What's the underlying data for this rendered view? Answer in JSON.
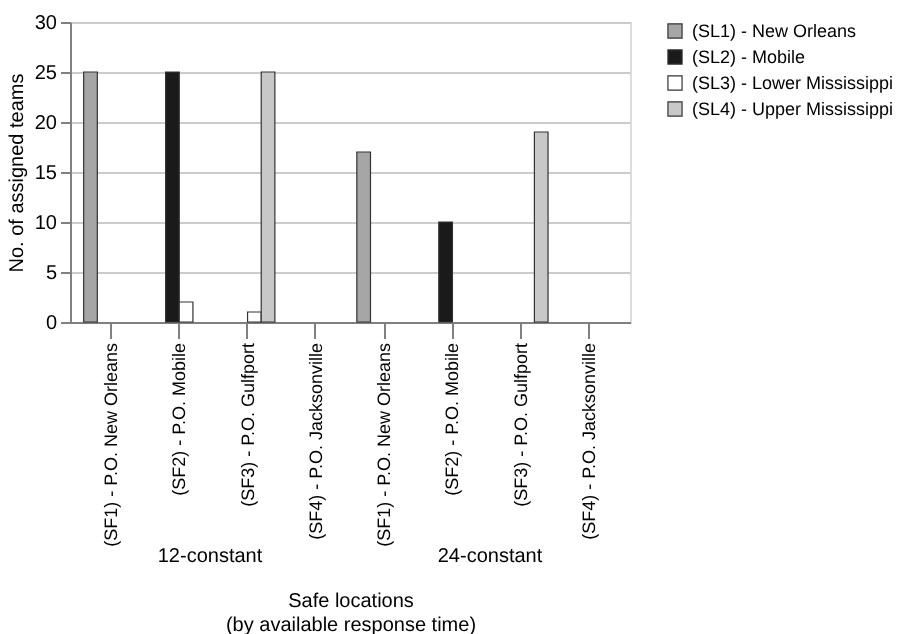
{
  "chart_data": {
    "type": "bar",
    "ylabel": "No. of assigned teams",
    "xlabel": "Safe locations\n(by available response time)",
    "categories": [
      "(SF1) - P.O. New Orleans",
      "(SF2) - P.O. Mobile",
      "(SF3) - P.O. Gulfport",
      "(SF4) - P.O. Jacksonville",
      "(SF1) - P.O. New Orleans",
      "(SF2) - P.O. Mobile",
      "(SF3) - P.O. Gulfport",
      "(SF4) - P.O. Jacksonville"
    ],
    "series": [
      {
        "name": "(SL1) - New Orleans",
        "color": "#a6a6a6",
        "values": [
          25,
          null,
          null,
          null,
          17,
          null,
          null,
          null
        ]
      },
      {
        "name": "(SL2) - Mobile",
        "color": "#1a1a1a",
        "values": [
          null,
          25,
          null,
          null,
          null,
          10,
          null,
          null
        ]
      },
      {
        "name": "(SL3) - Lower Mississippi",
        "color": "#ffffff",
        "values": [
          null,
          2,
          1,
          null,
          null,
          null,
          null,
          null
        ]
      },
      {
        "name": "(SL4) - Upper Mississippi",
        "color": "#c8c8c8",
        "values": [
          null,
          null,
          25,
          null,
          null,
          null,
          19,
          null
        ]
      }
    ],
    "annotations": [
      "12-constant",
      "24-constant"
    ],
    "ylim": [
      0,
      30
    ],
    "yticks": [
      0,
      5,
      10,
      15,
      20,
      25,
      30
    ],
    "grid": "y",
    "legend": "top right"
  }
}
